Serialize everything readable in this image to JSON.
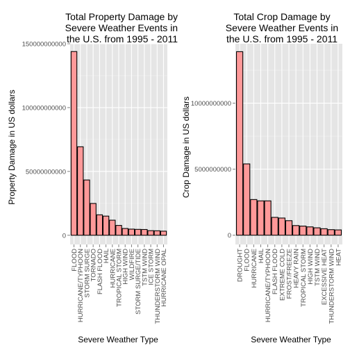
{
  "colors": {
    "panel_bg": "#e5e5e5",
    "grid_major": "#ffffff",
    "grid_minor": "#f0f0f0",
    "bar_fill": "#ff9999",
    "bar_stroke": "#000000",
    "tick_text": "#4d4d4d",
    "tick_mark": "#7f7f7f"
  },
  "chart_data": [
    {
      "type": "bar",
      "title": [
        "Total Property Damage by",
        "Severe Weather Events in",
        "the U.S. from 1995 - 2011"
      ],
      "xlabel": "Severe Weather Type",
      "ylabel": "Property Damage in US dollars",
      "ylim": [
        -7200000000,
        150000000000
      ],
      "yticks": [
        0,
        50000000000,
        100000000000,
        150000000000
      ],
      "ytick_labels": [
        "0",
        "50000000000",
        "100000000000",
        "150000000000"
      ],
      "grid": true,
      "categories": [
        "FLOOD",
        "HURRICANE/TYPHOON",
        "STORM SURGE",
        "TORNADO",
        "FLASH FLOOD",
        "HAIL",
        "HURRICANE",
        "TROPICAL STORM",
        "HIGH WIND",
        "WILDFIRE",
        "STORM SURGE/TIDE",
        "TSTM WIND",
        "ICE STORM",
        "THUNDERSTORM WIND",
        "HURRICANE OPAL"
      ],
      "values": [
        143900000000,
        69300000000,
        43300000000,
        24900000000,
        16000000000,
        15000000000,
        11800000000,
        7700000000,
        5300000000,
        4800000000,
        4600000000,
        4500000000,
        3600000000,
        3500000000,
        3200000000
      ]
    },
    {
      "type": "bar",
      "title": [
        "Total Crop Damage by",
        "Severe Weather Events in",
        "the U.S. from 1995 - 2011"
      ],
      "xlabel": "Severe Weather Type",
      "ylabel": "Crop Damage in US dollars",
      "ylim": [
        -700000000,
        14500000000
      ],
      "yticks": [
        0,
        5000000000,
        10000000000
      ],
      "ytick_labels": [
        "0",
        "5000000000",
        "10000000000"
      ],
      "grid": true,
      "categories": [
        "DROUGHT",
        "FLOOD",
        "HURRICANE",
        "HAIL",
        "HURRICANE/TYPHOON",
        "FLASH FLOOD",
        "EXTREME COLD",
        "FROST/FREEZE",
        "HEAVY RAIN",
        "TROPICAL STORM",
        "HIGH WIND",
        "TSTM WIND",
        "EXCESSIVE HEAT",
        "THUNDERSTORM WIND",
        "HEAT"
      ],
      "values": [
        13900000000,
        5400000000,
        2700000000,
        2600000000,
        2600000000,
        1350000000,
        1300000000,
        1100000000,
        730000000,
        690000000,
        630000000,
        560000000,
        490000000,
        420000000,
        400000000
      ]
    }
  ]
}
